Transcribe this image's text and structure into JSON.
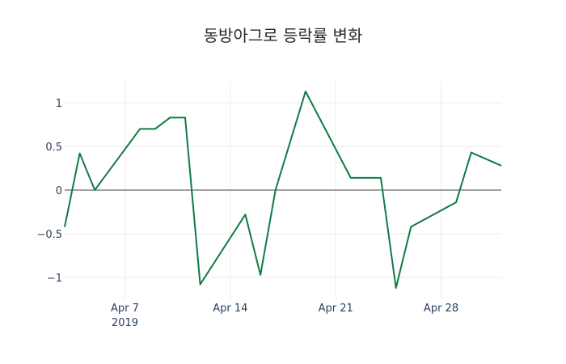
{
  "chart_data": {
    "type": "line",
    "title": "동방아그로 등락률 변화",
    "xlabel": "",
    "ylabel": "",
    "x": [
      "2019-04-03",
      "2019-04-04",
      "2019-04-05",
      "2019-04-08",
      "2019-04-09",
      "2019-04-10",
      "2019-04-11",
      "2019-04-12",
      "2019-04-15",
      "2019-04-16",
      "2019-04-17",
      "2019-04-19",
      "2019-04-22",
      "2019-04-24",
      "2019-04-25",
      "2019-04-26",
      "2019-04-29",
      "2019-04-30",
      "2019-05-02"
    ],
    "series": [
      {
        "name": "등락률",
        "color": "#0e7c43",
        "values": [
          -0.42,
          0.42,
          0.0,
          0.7,
          0.7,
          0.83,
          0.83,
          -1.08,
          -0.28,
          -0.97,
          0.0,
          1.13,
          0.14,
          0.14,
          -1.12,
          -0.42,
          -0.14,
          0.43,
          0.28
        ]
      }
    ],
    "x_ticks": [
      {
        "label": "Apr 7",
        "sublabel": "2019",
        "date": "2019-04-07"
      },
      {
        "label": "Apr 14",
        "date": "2019-04-14"
      },
      {
        "label": "Apr 21",
        "date": "2019-04-21"
      },
      {
        "label": "Apr 28",
        "date": "2019-04-28"
      }
    ],
    "y_ticks": [
      {
        "label": "1",
        "value": 1
      },
      {
        "label": "0.5",
        "value": 0.5
      },
      {
        "label": "0",
        "value": 0
      },
      {
        "label": "−0.5",
        "value": -0.5
      },
      {
        "label": "−1",
        "value": -1
      }
    ],
    "ylim": [
      -1.25,
      1.25
    ],
    "xlim": [
      "2019-04-03",
      "2019-05-02"
    ],
    "grid": true,
    "legend": "none"
  }
}
